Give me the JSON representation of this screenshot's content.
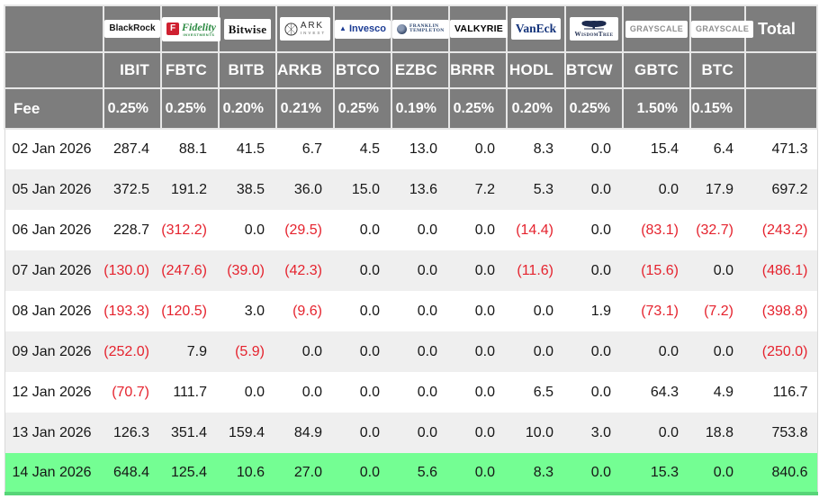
{
  "colors": {
    "header_bg": "#7d7d7d",
    "header_text": "#ffffff",
    "negative_value": "#e5232e",
    "highlight_row_bg": "#74fe93",
    "highlight_row_edge": "#57d578",
    "alt_row_bg": "#efefef"
  },
  "chart_data": {
    "type": "table",
    "columns": {
      "tickers": [
        "IBIT",
        "FBTC",
        "BITB",
        "ARKB",
        "BTCO",
        "EZBC",
        "BRRR",
        "HODL",
        "BTCW",
        "GBTC",
        "BTC"
      ],
      "total_label": "Total"
    },
    "providers": [
      {
        "name": "BlackRock",
        "logo_text": "BlackRock"
      },
      {
        "name": "Fidelity",
        "logo_f": "F",
        "logo_text": "Fidelity",
        "logo_sub": "INVESTMENTS"
      },
      {
        "name": "Bitwise",
        "logo_text": "Bitwise"
      },
      {
        "name": "ARK Invest",
        "logo_text": "ARK",
        "logo_sub": "INVEST"
      },
      {
        "name": "Invesco",
        "logo_text": "Invesco"
      },
      {
        "name": "Franklin Templeton",
        "logo_text": "FRANKLIN",
        "logo_sub": "TEMPLETON"
      },
      {
        "name": "Valkyrie",
        "logo_text": "VALKYRIE"
      },
      {
        "name": "VanEck",
        "logo_text": "VanEck"
      },
      {
        "name": "WisdomTree",
        "logo_text": "WisdomTree"
      },
      {
        "name": "Grayscale",
        "logo_text": "GRAYSCALE"
      },
      {
        "name": "Grayscale",
        "logo_text": "GRAYSCALE"
      }
    ],
    "fee_row": {
      "label": "Fee",
      "fees": [
        "0.25%",
        "0.25%",
        "0.20%",
        "0.21%",
        "0.25%",
        "0.19%",
        "0.25%",
        "0.20%",
        "0.25%",
        "1.50%",
        "0.15%"
      ]
    },
    "rows": [
      {
        "date": "02 Jan 2026",
        "values": [
          "287.4",
          "88.1",
          "41.5",
          "6.7",
          "4.5",
          "13.0",
          "0.0",
          "8.3",
          "0.0",
          "15.4",
          "6.4"
        ],
        "total": "471.3",
        "highlight": false
      },
      {
        "date": "05 Jan 2026",
        "values": [
          "372.5",
          "191.2",
          "38.5",
          "36.0",
          "15.0",
          "13.6",
          "7.2",
          "5.3",
          "0.0",
          "0.0",
          "17.9"
        ],
        "total": "697.2",
        "highlight": false
      },
      {
        "date": "06 Jan 2026",
        "values": [
          "228.7",
          "(312.2)",
          "0.0",
          "(29.5)",
          "0.0",
          "0.0",
          "0.0",
          "(14.4)",
          "0.0",
          "(83.1)",
          "(32.7)"
        ],
        "total": "(243.2)",
        "highlight": false
      },
      {
        "date": "07 Jan 2026",
        "values": [
          "(130.0)",
          "(247.6)",
          "(39.0)",
          "(42.3)",
          "0.0",
          "0.0",
          "0.0",
          "(11.6)",
          "0.0",
          "(15.6)",
          "0.0"
        ],
        "total": "(486.1)",
        "highlight": false
      },
      {
        "date": "08 Jan 2026",
        "values": [
          "(193.3)",
          "(120.5)",
          "3.0",
          "(9.6)",
          "0.0",
          "0.0",
          "0.0",
          "0.0",
          "1.9",
          "(73.1)",
          "(7.2)"
        ],
        "total": "(398.8)",
        "highlight": false
      },
      {
        "date": "09 Jan 2026",
        "values": [
          "(252.0)",
          "7.9",
          "(5.9)",
          "0.0",
          "0.0",
          "0.0",
          "0.0",
          "0.0",
          "0.0",
          "0.0",
          "0.0"
        ],
        "total": "(250.0)",
        "highlight": false
      },
      {
        "date": "12 Jan 2026",
        "values": [
          "(70.7)",
          "111.7",
          "0.0",
          "0.0",
          "0.0",
          "0.0",
          "0.0",
          "6.5",
          "0.0",
          "64.3",
          "4.9"
        ],
        "total": "116.7",
        "highlight": false
      },
      {
        "date": "13 Jan 2026",
        "values": [
          "126.3",
          "351.4",
          "159.4",
          "84.9",
          "0.0",
          "0.0",
          "0.0",
          "10.0",
          "3.0",
          "0.0",
          "18.8"
        ],
        "total": "753.8",
        "highlight": false
      },
      {
        "date": "14 Jan 2026",
        "values": [
          "648.4",
          "125.4",
          "10.6",
          "27.0",
          "0.0",
          "5.6",
          "0.0",
          "8.3",
          "0.0",
          "15.3",
          "0.0"
        ],
        "total": "840.6",
        "highlight": true
      }
    ]
  }
}
